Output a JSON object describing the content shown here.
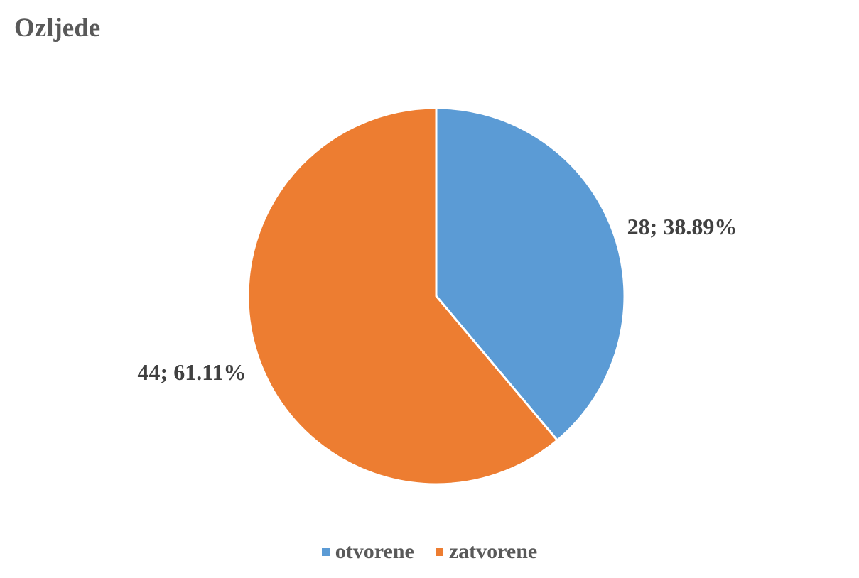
{
  "chart_data": {
    "type": "pie",
    "title": "Ozljede",
    "categories": [
      "otvorene",
      "zatvorene"
    ],
    "values": [
      28,
      44
    ],
    "percentages": [
      38.89,
      61.11
    ],
    "data_labels": [
      "28; 38.89%",
      "44; 61.11%"
    ],
    "colors": [
      "#5b9bd5",
      "#ed7d31"
    ],
    "legend_position": "bottom",
    "start_angle_deg": 0,
    "direction": "clockwise"
  },
  "legend": {
    "items": [
      {
        "label": "otvorene",
        "color": "#5b9bd5"
      },
      {
        "label": "zatvorene",
        "color": "#ed7d31"
      }
    ]
  }
}
